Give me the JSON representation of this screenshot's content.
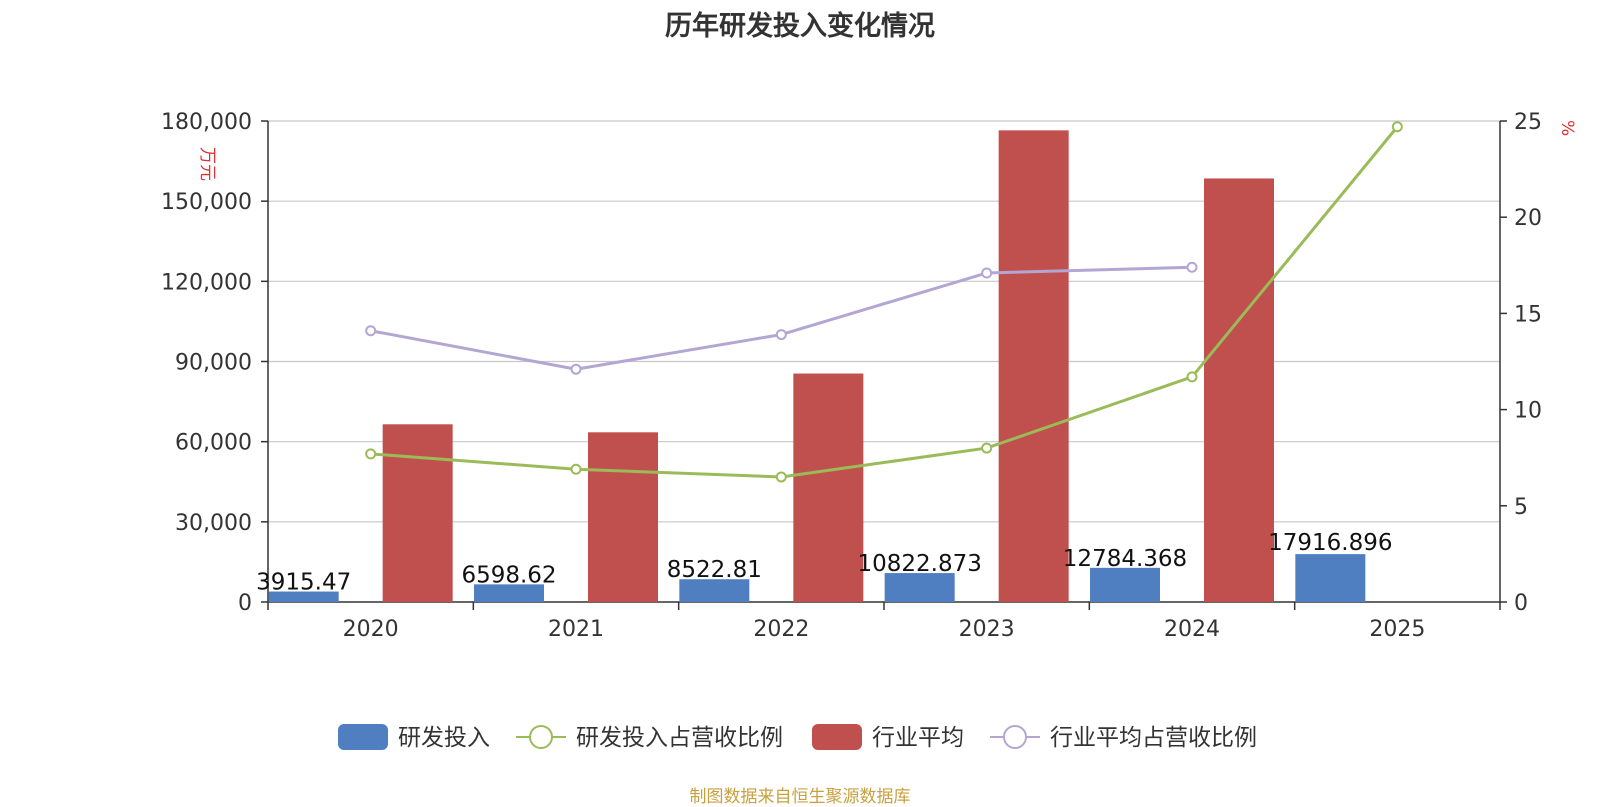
{
  "title": "历年研发投入变化情况",
  "source": "制图数据来自恒生聚源数据库",
  "chart_data": {
    "type": "bar",
    "categories": [
      "2020",
      "2021",
      "2022",
      "2023",
      "2024",
      "2025"
    ],
    "y_left": {
      "unit": "万元",
      "range": [
        0,
        180000
      ],
      "ticks": [
        "0",
        "30,000",
        "60,000",
        "90,000",
        "120,000",
        "150,000",
        "180,000"
      ]
    },
    "y_right": {
      "unit": "%",
      "range": [
        0,
        25
      ],
      "ticks": [
        "0",
        "5",
        "10",
        "15",
        "20",
        "25"
      ]
    },
    "grid": true,
    "legend_position": "bottom",
    "series": [
      {
        "name": "研发投入",
        "kind": "bar",
        "axis": "left",
        "color": "#4f7fc0",
        "values": [
          3915.47,
          6598.62,
          8522.81,
          10822.873,
          12784.368,
          17916.896
        ],
        "labels": [
          "3915.47",
          "6598.62",
          "8522.81",
          "10822.873",
          "12784.368",
          "17916.896"
        ]
      },
      {
        "name": "研发投入占营收比例",
        "kind": "line",
        "axis": "right",
        "color": "#9bbb59",
        "values": [
          7.7,
          6.9,
          6.5,
          8.0,
          11.7,
          24.7
        ]
      },
      {
        "name": "行业平均",
        "kind": "bar",
        "axis": "left",
        "color": "#c0504d",
        "values": [
          66500,
          63500,
          85500,
          176500,
          158500,
          null
        ]
      },
      {
        "name": "行业平均占营收比例",
        "kind": "line",
        "axis": "right",
        "color": "#b3a6d2",
        "values": [
          14.1,
          12.1,
          13.9,
          17.1,
          17.4,
          null
        ]
      }
    ]
  }
}
